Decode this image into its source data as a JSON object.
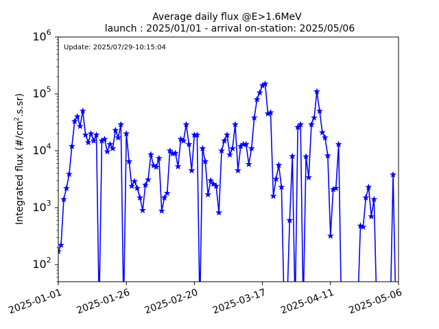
{
  "chart_data": {
    "type": "line",
    "title": "Average daily flux @E>1.6MeV",
    "subtitle": "launch : 2025/01/01 - arrival on-station: 2025/05/06",
    "update_label": "Update: 2025/07/29-10:15:04",
    "ylabel": "Integrated flux (#/cm",
    "ylabel_sup": "2",
    "ylabel_tail": ".s.sr)",
    "xlim": [
      "2025-01-01",
      "2025-05-06"
    ],
    "ylim": [
      50,
      1000000
    ],
    "yscale": "log",
    "x_ticks": [
      "2025-01-01",
      "2025-01-26",
      "2025-02-20",
      "2025-03-17",
      "2025-04-11",
      "2025-05-06"
    ],
    "y_ticks": [
      {
        "value": 100,
        "base": "10",
        "exp": "2"
      },
      {
        "value": 1000,
        "base": "10",
        "exp": "3"
      },
      {
        "value": 10000,
        "base": "10",
        "exp": "4"
      },
      {
        "value": 100000,
        "base": "10",
        "exp": "5"
      },
      {
        "value": 1000000,
        "base": "10",
        "exp": "6"
      }
    ],
    "grid": false,
    "series": [
      {
        "color": "#0000ff",
        "marker": "star",
        "start_date": "2025-01-01",
        "values": [
          170,
          220,
          1400,
          2200,
          3900,
          12000,
          33000,
          40000,
          27000,
          50000,
          19000,
          14000,
          20000,
          15000,
          19000,
          null,
          15000,
          16000,
          9700,
          13000,
          11000,
          23000,
          17000,
          29000,
          null,
          20000,
          6500,
          2400,
          2900,
          2200,
          1500,
          900,
          2500,
          3100,
          8600,
          5500,
          5200,
          7400,
          880,
          1500,
          1800,
          10000,
          8900,
          9100,
          5300,
          16000,
          15000,
          29000,
          13000,
          4500,
          19000,
          19000,
          null,
          11000,
          6500,
          1700,
          3000,
          2600,
          2400,
          820,
          10000,
          15000,
          19000,
          8500,
          11000,
          29000,
          4500,
          12000,
          13000,
          13000,
          5800,
          11000,
          38000,
          80000,
          105000,
          140000,
          150000,
          45000,
          47000,
          1600,
          3200,
          5600,
          2300,
          null,
          null,
          600,
          8000,
          null,
          26000,
          29000,
          null,
          7900,
          3400,
          29000,
          38000,
          110000,
          50000,
          21000,
          17000,
          8200,
          320,
          2100,
          2200,
          13000,
          null,
          null,
          null,
          null,
          null,
          null,
          null,
          480,
          460,
          1500,
          2300,
          700,
          1400,
          null,
          null,
          null,
          null,
          null,
          null,
          3800,
          null,
          null
        ]
      }
    ]
  }
}
